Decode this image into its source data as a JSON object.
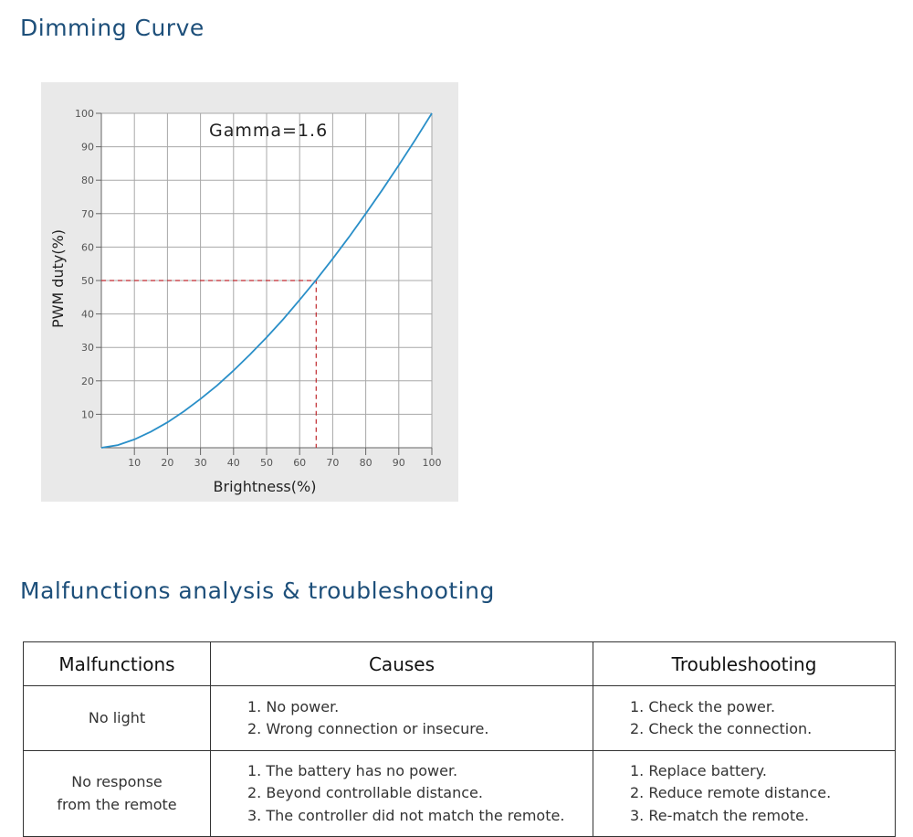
{
  "titles": {
    "dimming": "Dimming Curve",
    "malfunctions": "Malfunctions analysis & troubleshooting"
  },
  "colors": {
    "title": "#1d4f7a",
    "curve": "#2a8fc8",
    "marker": "#c0282d",
    "grid": "#a8a8a8",
    "panel": "#e9e9e9"
  },
  "chart_data": {
    "type": "line",
    "annotation": "Gamma=1.6",
    "xlabel": "Brightness(%)",
    "ylabel": "PWM duty(%)",
    "xlim": [
      0,
      100
    ],
    "ylim": [
      0,
      100
    ],
    "x_ticks": [
      10,
      20,
      30,
      40,
      50,
      60,
      70,
      80,
      90,
      100
    ],
    "y_ticks": [
      10,
      20,
      30,
      40,
      50,
      60,
      70,
      80,
      90,
      100
    ],
    "grid": true,
    "gamma": 1.6,
    "series": [
      {
        "x": [
          0,
          5,
          10,
          15,
          20,
          25,
          30,
          35,
          40,
          45,
          50,
          55,
          60,
          65,
          70,
          75,
          80,
          85,
          90,
          95,
          100
        ],
        "values": [
          0,
          0.8,
          2.5,
          4.8,
          7.6,
          10.9,
          14.6,
          18.6,
          23.1,
          27.9,
          33.0,
          38.4,
          44.2,
          50.2,
          56.5,
          63.1,
          70.0,
          77.1,
          84.5,
          92.1,
          100
        ]
      }
    ],
    "marker": {
      "x": 65,
      "y": 50
    }
  },
  "table": {
    "headers": [
      "Malfunctions",
      "Causes",
      "Troubleshooting"
    ],
    "rows": [
      {
        "malfunction": [
          "No light"
        ],
        "causes": [
          "1. No power.",
          "2. Wrong connection or insecure."
        ],
        "troubleshooting": [
          "1. Check the power.",
          "2. Check the connection."
        ]
      },
      {
        "malfunction": [
          "No response",
          "from the remote"
        ],
        "causes": [
          "1. The battery has no power.",
          "2. Beyond controllable distance.",
          "3. The controller did not match the remote."
        ],
        "troubleshooting": [
          "1. Replace battery.",
          "2. Reduce remote distance.",
          "3. Re-match the remote."
        ]
      }
    ]
  }
}
